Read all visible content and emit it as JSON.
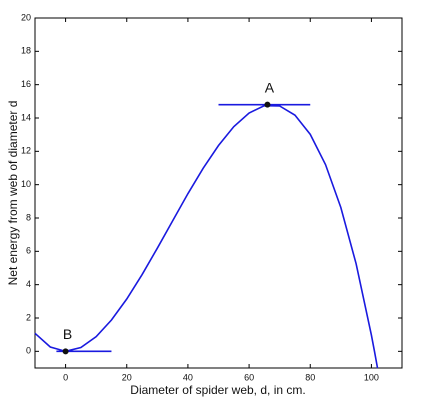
{
  "chart_data": {
    "type": "line",
    "x_label": "Diameter of spider web, d, in cm.",
    "y_label": "Net energy from web of diameter d",
    "x": [
      -10,
      -5,
      0,
      5,
      10,
      15,
      20,
      25,
      30,
      35,
      40,
      45,
      50,
      55,
      60,
      65,
      70,
      75,
      80,
      85,
      90,
      95,
      100,
      101,
      102
    ],
    "series": [
      {
        "color": "#1a1adf",
        "values": [
          1.08,
          0.26,
          0,
          0.23,
          0.88,
          1.88,
          3.14,
          4.6,
          6.19,
          7.83,
          9.46,
          10.99,
          12.35,
          13.48,
          14.3,
          14.74,
          14.72,
          14.17,
          13.02,
          11.2,
          8.63,
          5.25,
          0.97,
          0,
          -1.01
        ]
      }
    ],
    "points": [
      {
        "label": "A",
        "x": 66,
        "y": 14.8,
        "tangent": [
          50,
          80
        ]
      },
      {
        "label": "B",
        "x": 0,
        "y": 0,
        "tangent": [
          -3,
          15
        ]
      }
    ],
    "xlim": [
      -10,
      110
    ],
    "xticks": [
      0,
      20,
      40,
      60,
      80,
      100
    ],
    "ylim": [
      -1,
      20
    ],
    "yticks": [
      0,
      2,
      4,
      6,
      8,
      10,
      12,
      14,
      16,
      18,
      20
    ]
  }
}
